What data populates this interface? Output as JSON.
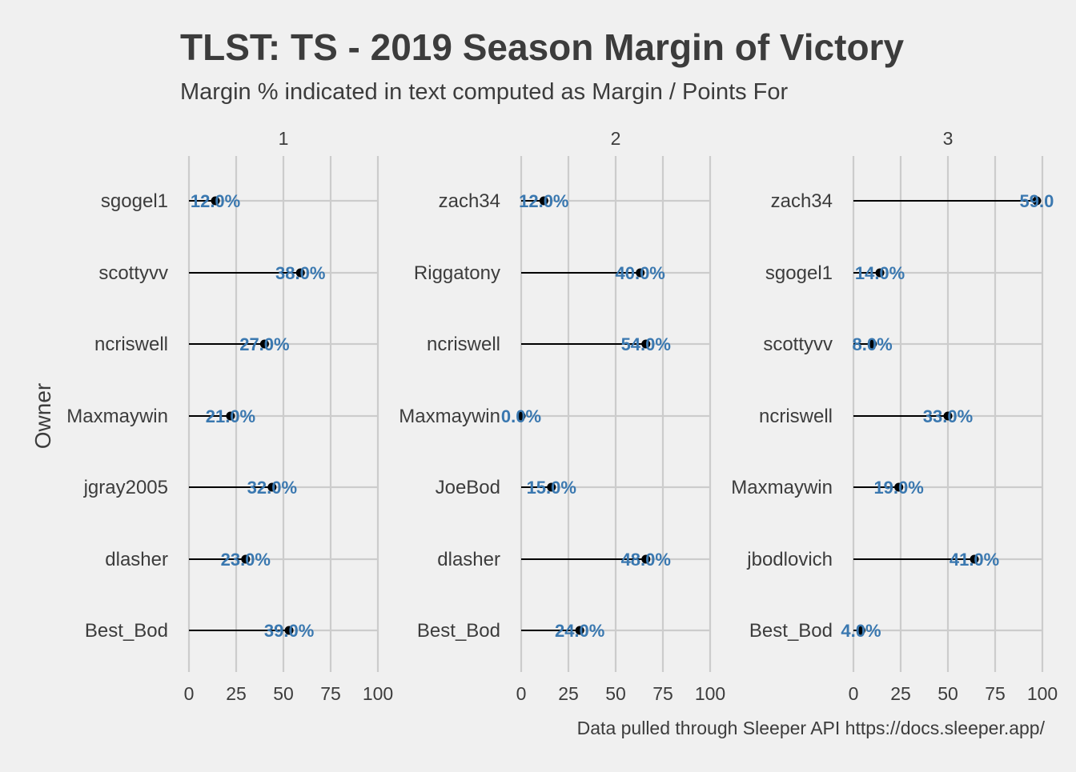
{
  "chart_data": {
    "type": "lollipop",
    "title": "TLST: TS - 2019 Season Margin of Victory",
    "subtitle": "Margin % indicated in text computed as Margin / Points For",
    "ylabel": "Owner",
    "caption": "Data pulled through Sleeper API https://docs.sleeper.app/",
    "xlim": [
      0,
      100
    ],
    "x_ticks": [
      "0",
      "25",
      "50",
      "75",
      "100"
    ],
    "colors": {
      "label": "#3a78b0",
      "point": "#000000",
      "segment": "#000000",
      "grid": "#cccccc"
    },
    "facets": [
      {
        "name": "1",
        "owners": [
          "sgogel1",
          "scottyvv",
          "ncriswell",
          "Maxmaywin",
          "jgray2005",
          "dlasher",
          "Best_Bod"
        ],
        "values": [
          14,
          59,
          40,
          22,
          44,
          30,
          53
        ],
        "labels": [
          "12.0%",
          "38.0%",
          "27.0%",
          "21.0%",
          "32.0%",
          "23.0%",
          "39.0%"
        ]
      },
      {
        "name": "2",
        "owners": [
          "zach34",
          "Riggatony",
          "ncriswell",
          "Maxmaywin",
          "JoeBod",
          "dlasher",
          "Best_Bod"
        ],
        "values": [
          12,
          63,
          66,
          0,
          16,
          66,
          31
        ],
        "labels": [
          "12.0%",
          "40.0%",
          "54.0%",
          "0.0%",
          "15.0%",
          "48.0%",
          "24.0%"
        ]
      },
      {
        "name": "3",
        "owners": [
          "zach34",
          "sgogel1",
          "scottyvv",
          "ncriswell",
          "Maxmaywin",
          "jbodlovich",
          "Best_Bod"
        ],
        "values": [
          97,
          14,
          10,
          50,
          24,
          64,
          4
        ],
        "labels": [
          "59.0",
          "14.0%",
          "8.0%",
          "33.0%",
          "19.0%",
          "41.0%",
          "4.0%"
        ]
      }
    ]
  }
}
